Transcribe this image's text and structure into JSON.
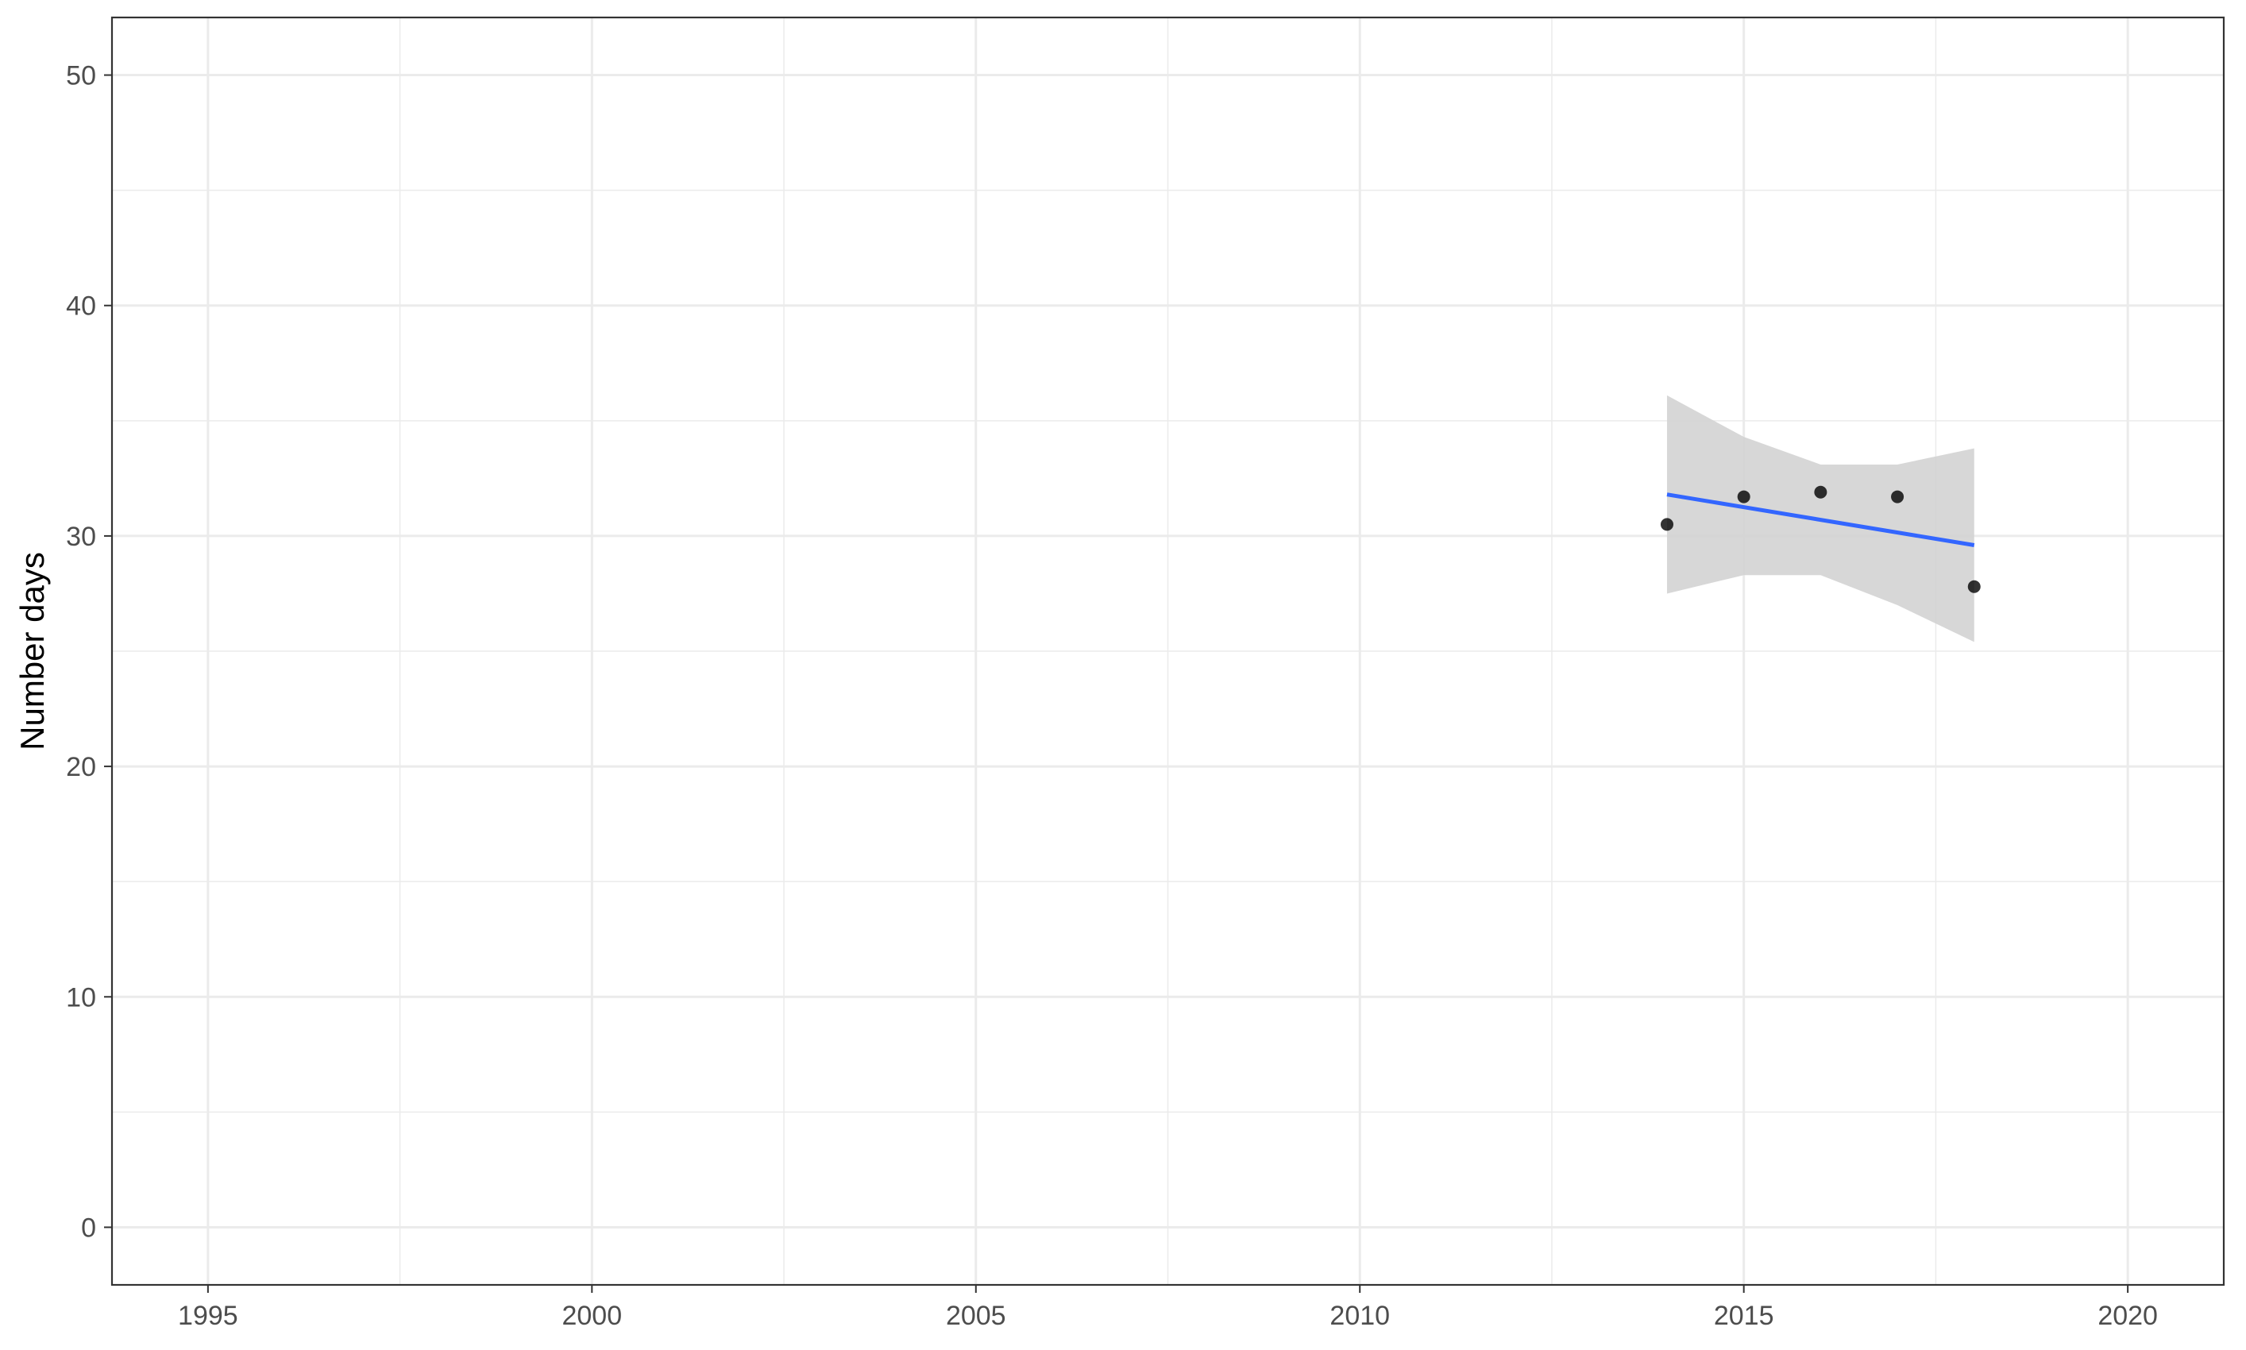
{
  "chart_data": {
    "type": "scatter",
    "title": "",
    "xlabel": "",
    "ylabel": "Number days",
    "xlim": [
      1993.75,
      2021.25
    ],
    "ylim": [
      -2.5,
      52.5
    ],
    "x_ticks": [
      1995,
      2000,
      2005,
      2010,
      2015,
      2020
    ],
    "y_ticks": [
      0,
      10,
      20,
      30,
      40,
      50
    ],
    "grid": true,
    "legend": "none",
    "points": [
      {
        "x": 2014,
        "y": 30.5
      },
      {
        "x": 2015,
        "y": 31.7
      },
      {
        "x": 2016,
        "y": 31.9
      },
      {
        "x": 2017,
        "y": 31.7
      },
      {
        "x": 2018,
        "y": 27.8
      }
    ],
    "trend_line": {
      "method": "linear fit",
      "x": [
        2014,
        2018
      ],
      "y": [
        31.8,
        29.6
      ],
      "color": "#3366FF"
    },
    "confidence_band": {
      "x": [
        2014,
        2015,
        2016,
        2017,
        2018
      ],
      "lower": [
        27.5,
        28.3,
        28.3,
        27.0,
        25.4
      ],
      "upper": [
        36.1,
        34.3,
        33.1,
        33.1,
        33.8
      ],
      "color": "#d3d3d3"
    }
  }
}
